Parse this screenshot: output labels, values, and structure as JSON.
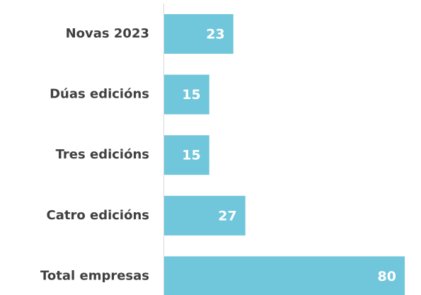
{
  "chart_data": {
    "type": "bar",
    "orientation": "horizontal",
    "categories": [
      "Novas 2023",
      "Dúas edicións",
      "Tres edicións",
      "Catro edicións",
      "Total empresas"
    ],
    "values": [
      23,
      15,
      15,
      27,
      80
    ],
    "color": "#70c6db"
  }
}
